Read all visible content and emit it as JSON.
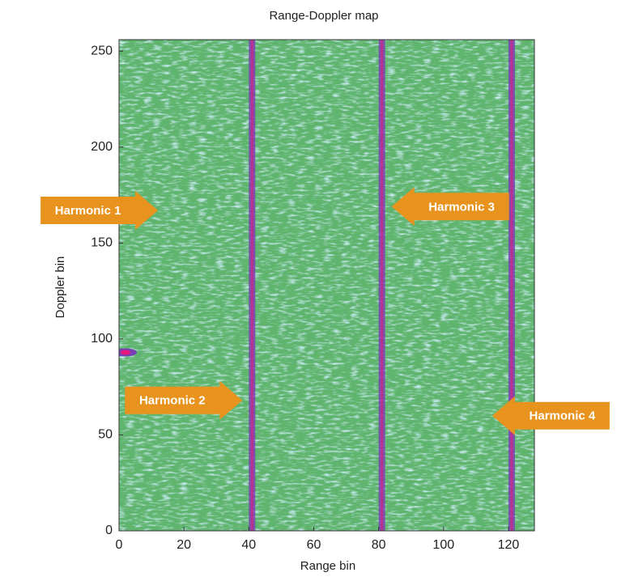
{
  "chart_data": {
    "type": "heatmap",
    "title": "Range-Doppler map",
    "xlabel": "Range bin",
    "ylabel": "Doppler bin",
    "xlim": [
      0,
      128
    ],
    "ylim": [
      0,
      256
    ],
    "xticks": [
      0,
      20,
      40,
      60,
      80,
      100,
      120
    ],
    "yticks": [
      0,
      50,
      100,
      150,
      200,
      250
    ],
    "background_color": "#5fb46e",
    "ridge_color": "#7b3fb5",
    "peak_color": "#e8197f",
    "ridges_x": [
      41,
      81,
      121
    ],
    "spots": {
      "x": [
        2,
        2
      ],
      "y": [
        167,
        93
      ]
    },
    "annotations": [
      {
        "text": "Harmonic 1",
        "x": 12,
        "y": 167,
        "direction": "right"
      },
      {
        "text": "Harmonic 2",
        "x": 38,
        "y": 68,
        "direction": "right"
      },
      {
        "text": "Harmonic 3",
        "x": 84,
        "y": 169,
        "direction": "left"
      },
      {
        "text": "Harmonic 4",
        "x": 115,
        "y": 60,
        "direction": "left"
      }
    ],
    "annotation_color": "#e8931e"
  }
}
